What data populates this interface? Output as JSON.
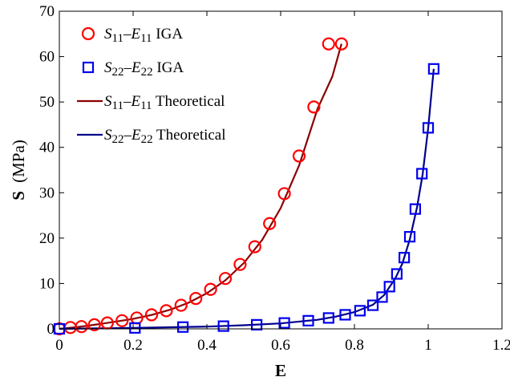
{
  "chart_data": {
    "type": "line",
    "title": "",
    "xlabel": "E",
    "ylabel_symbol": "S",
    "ylabel_unit": "(MPa)",
    "xlim": [
      0,
      1.2
    ],
    "ylim": [
      0,
      70
    ],
    "xticks": [
      0,
      0.2,
      0.4,
      0.6,
      0.8,
      1,
      1.2
    ],
    "yticks": [
      0,
      10,
      20,
      30,
      40,
      50,
      60,
      70
    ],
    "xtick_labels": [
      "0",
      "0.2",
      "0.4",
      "0.6",
      "0.8",
      "1",
      "1.2"
    ],
    "ytick_labels": [
      "0",
      "10",
      "20",
      "30",
      "40",
      "50",
      "60",
      "70"
    ],
    "grid": false,
    "legend_position": "top-left",
    "series": [
      {
        "name": "S11-E11 IGA",
        "legend_parts": {
          "s_base": "S",
          "s_sub": "11",
          "dash": "–",
          "e_base": "E",
          "e_sub": "11",
          "suffix": "IGA"
        },
        "marker": "circle",
        "color": "#ff0000",
        "x": [
          0.0,
          0.03,
          0.06,
          0.095,
          0.13,
          0.17,
          0.21,
          0.25,
          0.29,
          0.33,
          0.37,
          0.41,
          0.45,
          0.49,
          0.53,
          0.57,
          0.61,
          0.65,
          0.69,
          0.73,
          0.765
        ],
        "y": [
          0.0,
          0.3,
          0.5,
          0.9,
          1.3,
          1.8,
          2.4,
          3.1,
          4.0,
          5.2,
          6.7,
          8.7,
          11.1,
          14.2,
          18.1,
          23.2,
          29.8,
          38.1,
          48.9,
          62.8,
          62.8
        ]
      },
      {
        "name": "S22-E22 IGA",
        "legend_parts": {
          "s_base": "S",
          "s_sub": "22",
          "dash": "–",
          "e_base": "E",
          "e_sub": "22",
          "suffix": "IGA"
        },
        "marker": "square",
        "color": "#0000ee",
        "x": [
          0.0,
          0.205,
          0.335,
          0.445,
          0.535,
          0.61,
          0.675,
          0.73,
          0.775,
          0.815,
          0.85,
          0.875,
          0.895,
          0.915,
          0.935,
          0.95,
          0.965,
          0.983,
          1.0,
          1.015
        ],
        "y": [
          0.0,
          0.2,
          0.4,
          0.6,
          0.9,
          1.3,
          1.8,
          2.4,
          3.1,
          4.0,
          5.2,
          7.0,
          9.3,
          12.1,
          15.7,
          20.3,
          26.4,
          34.2,
          44.3,
          57.3
        ]
      },
      {
        "name": "S11-E11 Theoretical",
        "legend_parts": {
          "s_base": "S",
          "s_sub": "11",
          "dash": "–",
          "e_base": "E",
          "e_sub": "11",
          "suffix": "Theoretical"
        },
        "marker": "none",
        "color": "#8b0000",
        "x": [
          0.0,
          0.05,
          0.1,
          0.15,
          0.2,
          0.25,
          0.3,
          0.35,
          0.4,
          0.45,
          0.5,
          0.55,
          0.6,
          0.65,
          0.7,
          0.74,
          0.765
        ],
        "y": [
          0.0,
          0.4,
          0.95,
          1.55,
          2.2,
          3.05,
          4.2,
          5.75,
          7.85,
          10.7,
          14.5,
          19.6,
          26.6,
          36.0,
          48.5,
          55.6,
          62.8
        ]
      },
      {
        "name": "S22-E22 Theoretical",
        "legend_parts": {
          "s_base": "S",
          "s_sub": "22",
          "dash": "–",
          "e_base": "E",
          "e_sub": "22",
          "suffix": "Theoretical"
        },
        "marker": "none",
        "color": "#00008b",
        "x": [
          0.0,
          0.1,
          0.2,
          0.3,
          0.4,
          0.5,
          0.6,
          0.7,
          0.75,
          0.8,
          0.85,
          0.88,
          0.91,
          0.93,
          0.95,
          0.97,
          0.985,
          1.0,
          1.015
        ],
        "y": [
          0.0,
          0.1,
          0.2,
          0.35,
          0.5,
          0.8,
          1.2,
          2.0,
          2.7,
          3.7,
          5.3,
          7.4,
          11.0,
          14.4,
          19.7,
          26.9,
          34.1,
          44.3,
          57.3
        ]
      }
    ]
  }
}
